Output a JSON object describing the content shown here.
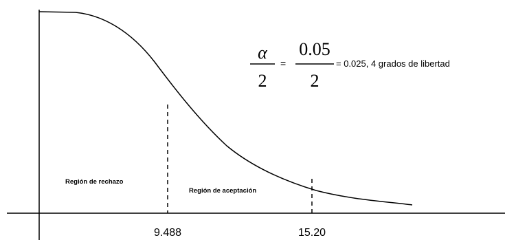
{
  "formula": {
    "alpha_symbol": "α",
    "denominator_left": "2",
    "equals": "=",
    "numerator_right": "0.05",
    "denominator_right": "2",
    "result_text": "= 0.025, 4 grados de libertad"
  },
  "regions": {
    "rejection_label": "Región  de rechazo",
    "acceptance_label": "Región  de aceptación"
  },
  "ticks": {
    "critical_value_1": "9.488",
    "critical_value_2": "15.20"
  },
  "colors": {
    "ink": "#000000",
    "background": "#ffffff"
  }
}
